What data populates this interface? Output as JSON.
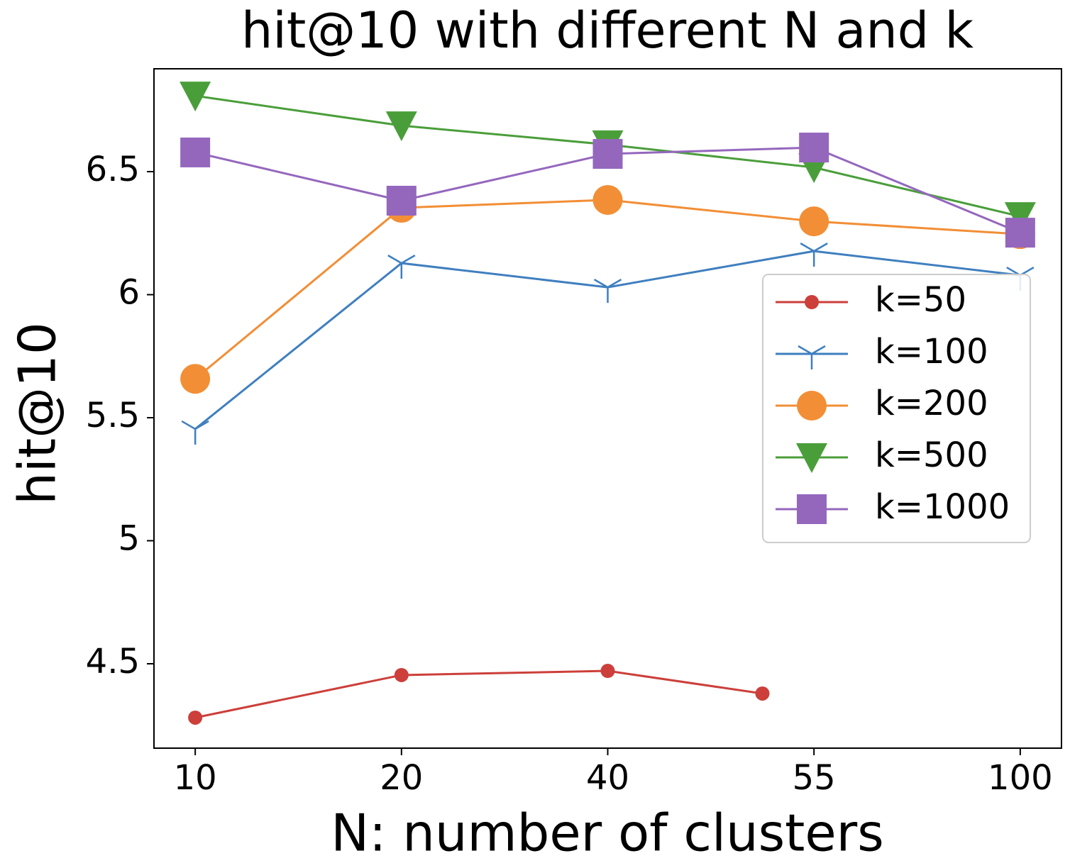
{
  "chart_data": {
    "type": "line",
    "title": "hit@10 with different N and k",
    "xlabel": "N: number of clusters",
    "ylabel": "hit@10",
    "xlim": [
      -0.2,
      4.2
    ],
    "xticks": [
      {
        "value": 0,
        "label": "10"
      },
      {
        "value": 1,
        "label": "20"
      },
      {
        "value": 2,
        "label": "40"
      },
      {
        "value": 3,
        "label": "55"
      },
      {
        "value": 4,
        "label": "100"
      }
    ],
    "ylim": [
      4.157,
      6.918
    ],
    "yticks": [
      4.5,
      5,
      5.5,
      6,
      6.5
    ],
    "grid": false,
    "legend": "right",
    "series": [
      {
        "name": "k=50",
        "color": "#cc3f3a",
        "marker": "circle",
        "x": [
          0,
          1,
          2,
          2.75
        ],
        "values": [
          4.281,
          4.454,
          4.471,
          4.379
        ]
      },
      {
        "name": "k=100",
        "color": "#3f7fbf",
        "marker": "tri_down",
        "x": [
          0,
          1,
          2,
          3,
          4
        ],
        "values": [
          5.454,
          6.128,
          6.03,
          6.177,
          6.079
        ]
      },
      {
        "name": "k=200",
        "color": "#f28e35",
        "marker": "big_circle",
        "x": [
          0,
          1,
          2,
          3,
          4
        ],
        "values": [
          5.658,
          6.353,
          6.385,
          6.298,
          6.246
        ]
      },
      {
        "name": "k=500",
        "color": "#4a9e3a",
        "marker": "triangle_down",
        "x": [
          0,
          1,
          2,
          3,
          4
        ],
        "values": [
          6.808,
          6.687,
          6.61,
          6.517,
          6.318
        ]
      },
      {
        "name": "k=1000",
        "color": "#9467bd",
        "marker": "square",
        "x": [
          0,
          1,
          2,
          3,
          4
        ],
        "values": [
          6.578,
          6.382,
          6.572,
          6.598,
          6.252
        ]
      }
    ]
  }
}
